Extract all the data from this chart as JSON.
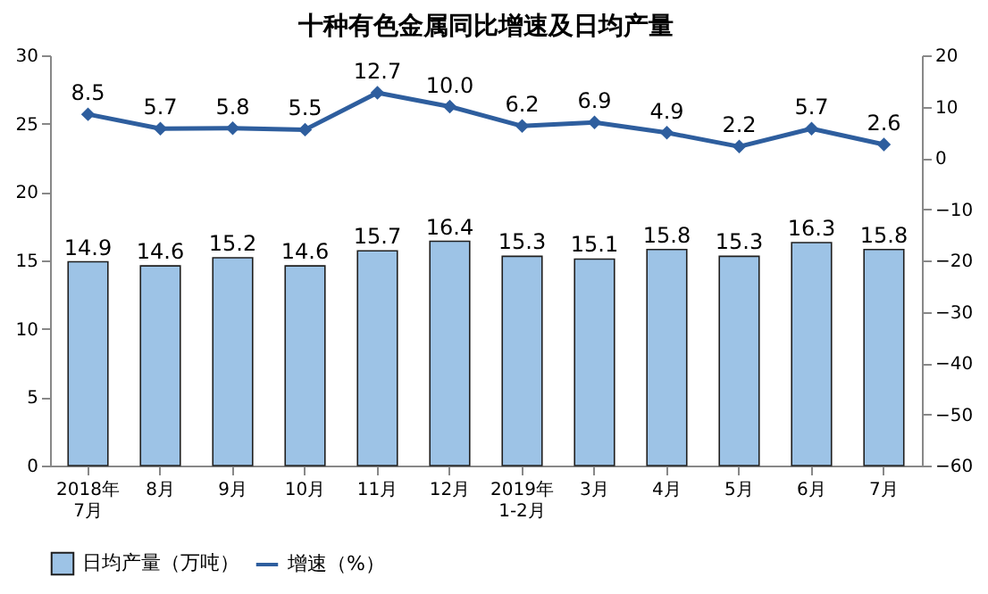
{
  "chart_data": {
    "type": "bar",
    "title": "十种有色金属同比增速及日均产量",
    "categories": [
      "2018年\n7月",
      "8月",
      "9月",
      "10月",
      "11月",
      "12月",
      "2019年\n1-2月",
      "3月",
      "4月",
      "5月",
      "6月",
      "7月"
    ],
    "series": [
      {
        "name": "日均产量（万吨）",
        "color": "#9dc3e6",
        "values": [
          14.9,
          14.6,
          15.2,
          14.6,
          15.7,
          16.4,
          15.3,
          15.1,
          15.8,
          15.3,
          16.3,
          15.8
        ]
      },
      {
        "name": "增速（%）",
        "type": "line",
        "axis": "y2",
        "color": "#2e5e9e",
        "marker": "diamond",
        "values": [
          8.5,
          5.7,
          5.8,
          5.5,
          12.7,
          10.0,
          6.2,
          6.9,
          4.9,
          2.2,
          5.7,
          2.6
        ],
        "value_labels": [
          "8.5",
          "5.7",
          "5.8",
          "5.5",
          "12.7",
          "10.0",
          "6.2",
          "6.9",
          "4.9",
          "2.2",
          "5.7",
          "2.6"
        ]
      }
    ],
    "ylim": [
      0,
      30
    ],
    "yticks": [
      0,
      5,
      10,
      15,
      20,
      25,
      30
    ],
    "y2lim": [
      -60,
      20
    ],
    "y2ticks": [
      -60,
      -50,
      -40,
      -30,
      -20,
      -10,
      0,
      10,
      20
    ],
    "data_labels": true,
    "legend": "bottom",
    "grid": false
  }
}
